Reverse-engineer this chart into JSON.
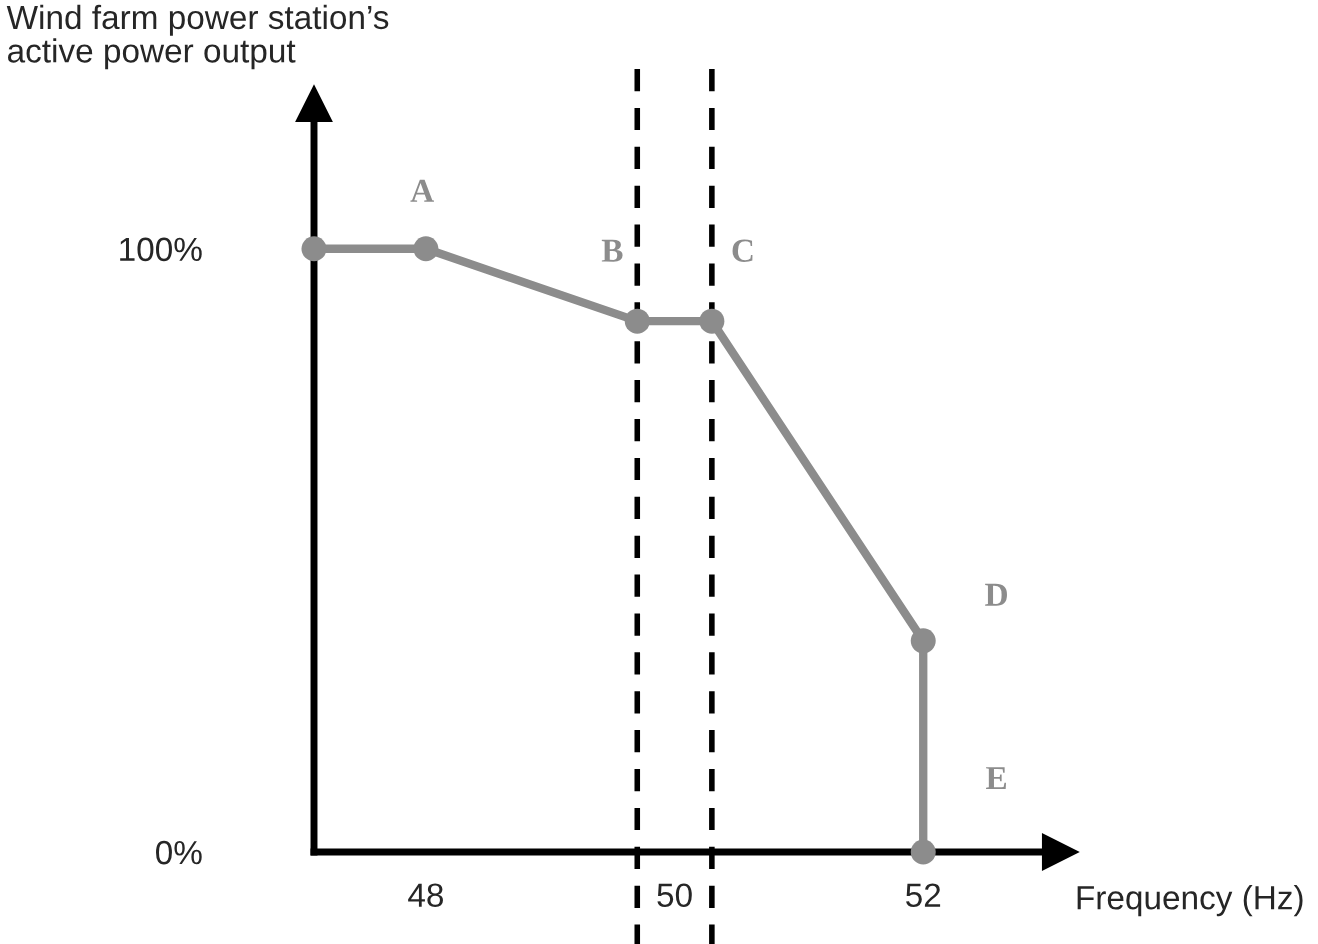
{
  "chart_data": {
    "type": "line",
    "ylabel": "Wind farm power station’s\nactive power output",
    "xlabel": "Frequency (Hz)",
    "series": [
      {
        "color": "#8c8c8c",
        "x": [
          47.1,
          48,
          49.7,
          50.3,
          52,
          52
        ],
        "values": [
          100,
          100,
          88,
          88,
          35,
          0
        ]
      }
    ],
    "xlim": [
      47.1,
      53.1
    ],
    "ylim": [
      0,
      124
    ],
    "xticks": [
      48,
      50,
      52
    ],
    "yticks": [
      {
        "value": 0,
        "label": "0%"
      },
      {
        "value": 100,
        "label": "100%"
      }
    ],
    "ref_lines": [
      {
        "axis": "x",
        "value": 49.7,
        "color": "#000000",
        "line_style": "dashed"
      },
      {
        "axis": "x",
        "value": 50.3,
        "color": "#000000",
        "line_style": "dashed"
      }
    ],
    "annotations": [
      "A",
      "B",
      "C",
      "D",
      "E"
    ],
    "marker": "circle",
    "line_style": "solid",
    "grid": false,
    "legend": false
  }
}
